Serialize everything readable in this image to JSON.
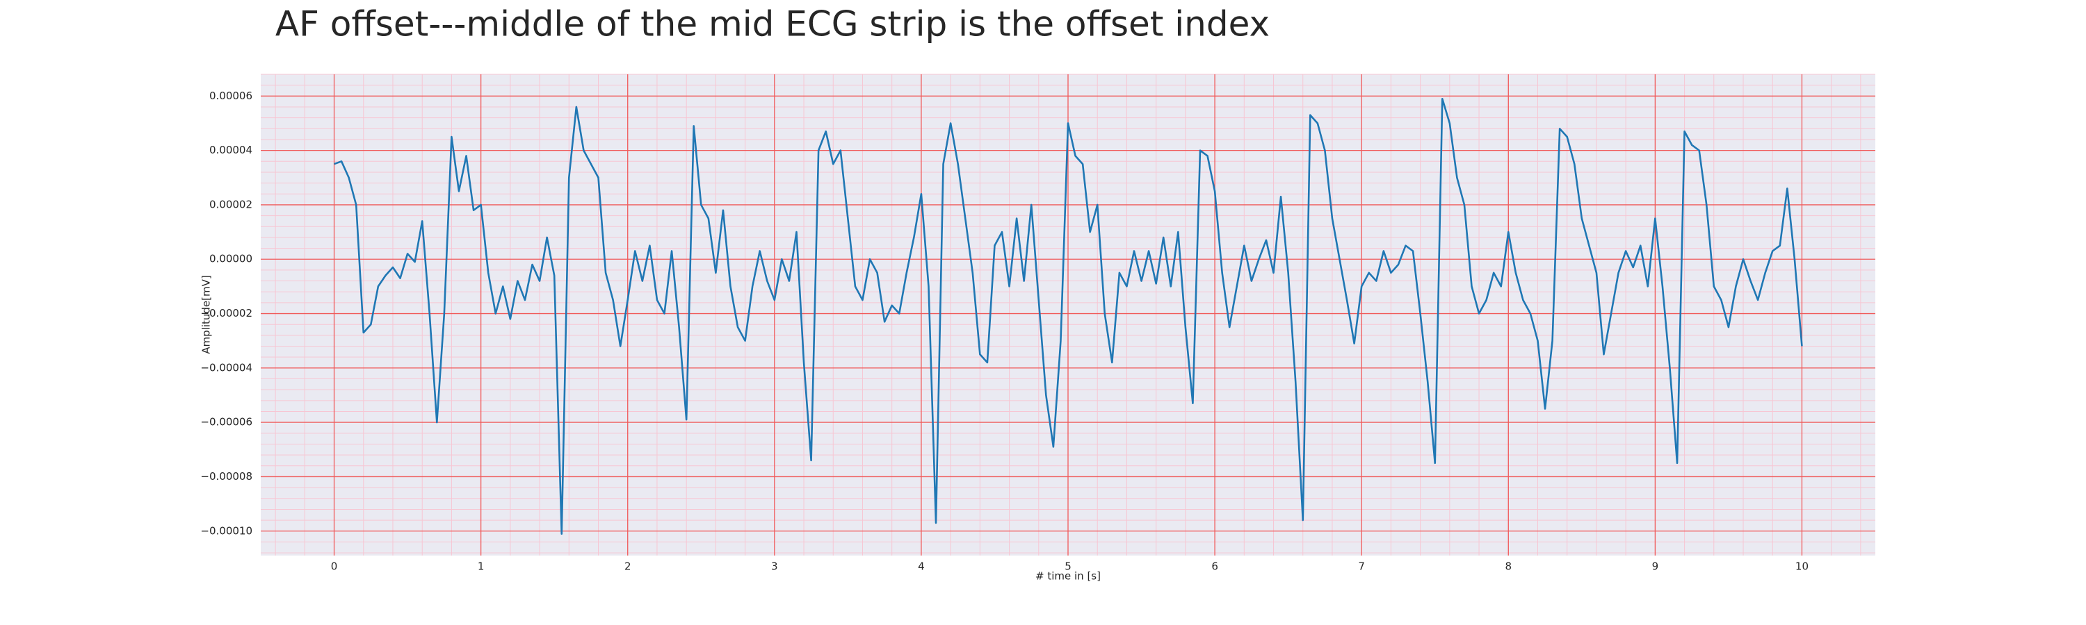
{
  "chart_data": {
    "type": "line",
    "title": "AF offset---middle of the mid ECG strip is the offset index",
    "x_label": "# time in [s]",
    "y_label": "Amplitude[mV]",
    "color": "#1f77b4",
    "grid": true,
    "minor_grid": true,
    "xlim": [
      -0.5,
      10.5
    ],
    "ylim": [
      -0.000109,
      6.8e-05
    ],
    "xticks": [
      0,
      1,
      2,
      3,
      4,
      5,
      6,
      7,
      8,
      9,
      10
    ],
    "yticks": [
      {
        "value": -0.0001,
        "label": "−0.00010"
      },
      {
        "value": -8e-05,
        "label": "−0.00008"
      },
      {
        "value": -6e-05,
        "label": "−0.00006"
      },
      {
        "value": -4e-05,
        "label": "−0.00004"
      },
      {
        "value": -2e-05,
        "label": "−0.00002"
      },
      {
        "value": 0,
        "label": "0.00000"
      },
      2e-05,
      4e-05,
      6e-05
    ],
    "x": [
      0,
      0.05,
      0.1,
      0.15,
      0.2,
      0.25,
      0.3,
      0.35,
      0.4,
      0.45,
      0.5,
      0.55,
      0.6,
      0.65,
      0.7,
      0.75,
      0.8,
      0.85,
      0.9,
      0.95,
      1,
      1.05,
      1.1,
      1.15,
      1.2,
      1.25,
      1.3,
      1.35,
      1.4,
      1.45,
      1.5,
      1.55,
      1.6,
      1.65,
      1.7,
      1.75,
      1.8,
      1.85,
      1.9,
      1.95,
      2,
      2.05,
      2.1,
      2.15,
      2.2,
      2.25,
      2.3,
      2.35,
      2.4,
      2.45,
      2.5,
      2.55,
      2.6,
      2.65,
      2.7,
      2.75,
      2.8,
      2.85,
      2.9,
      2.95,
      3,
      3.05,
      3.1,
      3.15,
      3.2,
      3.25,
      3.3,
      3.35,
      3.4,
      3.45,
      3.5,
      3.55,
      3.6,
      3.65,
      3.7,
      3.75,
      3.8,
      3.85,
      3.9,
      3.95,
      4,
      4.05,
      4.1,
      4.15,
      4.2,
      4.25,
      4.3,
      4.35,
      4.4,
      4.45,
      4.5,
      4.55,
      4.6,
      4.65,
      4.7,
      4.75,
      4.8,
      4.85,
      4.9,
      4.95,
      5,
      5.05,
      5.1,
      5.15,
      5.2,
      5.25,
      5.3,
      5.35,
      5.4,
      5.45,
      5.5,
      5.55,
      5.6,
      5.65,
      5.7,
      5.75,
      5.8,
      5.85,
      5.9,
      5.95,
      6,
      6.05,
      6.1,
      6.15,
      6.2,
      6.25,
      6.3,
      6.35,
      6.4,
      6.45,
      6.5,
      6.55,
      6.6,
      6.65,
      6.7,
      6.75,
      6.8,
      6.85,
      6.9,
      6.95,
      7,
      7.05,
      7.1,
      7.15,
      7.2,
      7.25,
      7.3,
      7.35,
      7.4,
      7.45,
      7.5,
      7.55,
      7.6,
      7.65,
      7.7,
      7.75,
      7.8,
      7.85,
      7.9,
      7.95,
      8,
      8.05,
      8.1,
      8.15,
      8.2,
      8.25,
      8.3,
      8.35,
      8.4,
      8.45,
      8.5,
      8.55,
      8.6,
      8.65,
      8.7,
      8.75,
      8.8,
      8.85,
      8.9,
      8.95,
      9,
      9.05,
      9.1,
      9.15,
      9.2,
      9.25,
      9.3,
      9.35,
      9.4,
      9.45,
      9.5,
      9.55,
      9.6,
      9.65,
      9.7,
      9.75,
      9.8,
      9.85,
      9.9,
      9.95,
      10
    ],
    "values": [
      3.5e-05,
      3.6e-05,
      3e-05,
      2e-05,
      -2.7e-05,
      -2.4e-05,
      -1e-05,
      -6e-06,
      -3e-06,
      -7e-06,
      2e-06,
      -1e-06,
      1.4e-05,
      -2e-05,
      -6e-05,
      -2e-05,
      4.5e-05,
      2.5e-05,
      3.8e-05,
      1.8e-05,
      2e-05,
      -5e-06,
      -2e-05,
      -1e-05,
      -2.2e-05,
      -8e-06,
      -1.5e-05,
      -2e-06,
      -8e-06,
      8e-06,
      -6e-06,
      -0.000101,
      3e-05,
      5.6e-05,
      4e-05,
      3.5e-05,
      3e-05,
      -5e-06,
      -1.5e-05,
      -3.2e-05,
      -1.5e-05,
      3e-06,
      -8e-06,
      5e-06,
      -1.5e-05,
      -2e-05,
      3e-06,
      -2.5e-05,
      -5.9e-05,
      4.9e-05,
      2e-05,
      1.5e-05,
      -5e-06,
      1.8e-05,
      -1e-05,
      -2.5e-05,
      -3e-05,
      -1e-05,
      3e-06,
      -8e-06,
      -1.5e-05,
      0,
      -8e-06,
      1e-05,
      -3.8e-05,
      -7.4e-05,
      4e-05,
      4.7e-05,
      3.5e-05,
      4e-05,
      1.5e-05,
      -1e-05,
      -1.5e-05,
      0,
      -5e-06,
      -2.3e-05,
      -1.7e-05,
      -2e-05,
      -5e-06,
      8e-06,
      2.4e-05,
      -1e-05,
      -9.7e-05,
      3.5e-05,
      5e-05,
      3.5e-05,
      1.5e-05,
      -5e-06,
      -3.5e-05,
      -3.8e-05,
      5e-06,
      1e-05,
      -1e-05,
      1.5e-05,
      -8e-06,
      2e-05,
      -1.5e-05,
      -5e-05,
      -6.9e-05,
      -3e-05,
      5e-05,
      3.8e-05,
      3.5e-05,
      1e-05,
      2e-05,
      -2e-05,
      -3.8e-05,
      -5e-06,
      -1e-05,
      3e-06,
      -8e-06,
      3e-06,
      -9e-06,
      8e-06,
      -1e-05,
      1e-05,
      -2.5e-05,
      -5.3e-05,
      4e-05,
      3.8e-05,
      2.5e-05,
      -5e-06,
      -2.5e-05,
      -1e-05,
      5e-06,
      -8e-06,
      0,
      7e-06,
      -5e-06,
      2.3e-05,
      -5e-06,
      -4.5e-05,
      -9.6e-05,
      5.3e-05,
      5e-05,
      4e-05,
      1.5e-05,
      0,
      -1.5e-05,
      -3.1e-05,
      -1e-05,
      -5e-06,
      -8e-06,
      3e-06,
      -5e-06,
      -2e-06,
      5e-06,
      3e-06,
      -2e-05,
      -4.5e-05,
      -7.5e-05,
      5.9e-05,
      5e-05,
      3e-05,
      2e-05,
      -1e-05,
      -2e-05,
      -1.5e-05,
      -5e-06,
      -1e-05,
      1e-05,
      -5e-06,
      -1.5e-05,
      -2e-05,
      -3e-05,
      -5.5e-05,
      -3e-05,
      4.8e-05,
      4.5e-05,
      3.5e-05,
      1.5e-05,
      5e-06,
      -5e-06,
      -3.5e-05,
      -2e-05,
      -5e-06,
      3e-06,
      -3e-06,
      5e-06,
      -1e-05,
      1.5e-05,
      -1e-05,
      -4e-05,
      -7.5e-05,
      4.7e-05,
      4.2e-05,
      4e-05,
      2e-05,
      -1e-05,
      -1.5e-05,
      -2.5e-05,
      -1e-05,
      0,
      -8e-06,
      -1.5e-05,
      -5e-06,
      3e-06,
      5e-06,
      2.6e-05,
      0,
      -3.2e-05
    ]
  }
}
